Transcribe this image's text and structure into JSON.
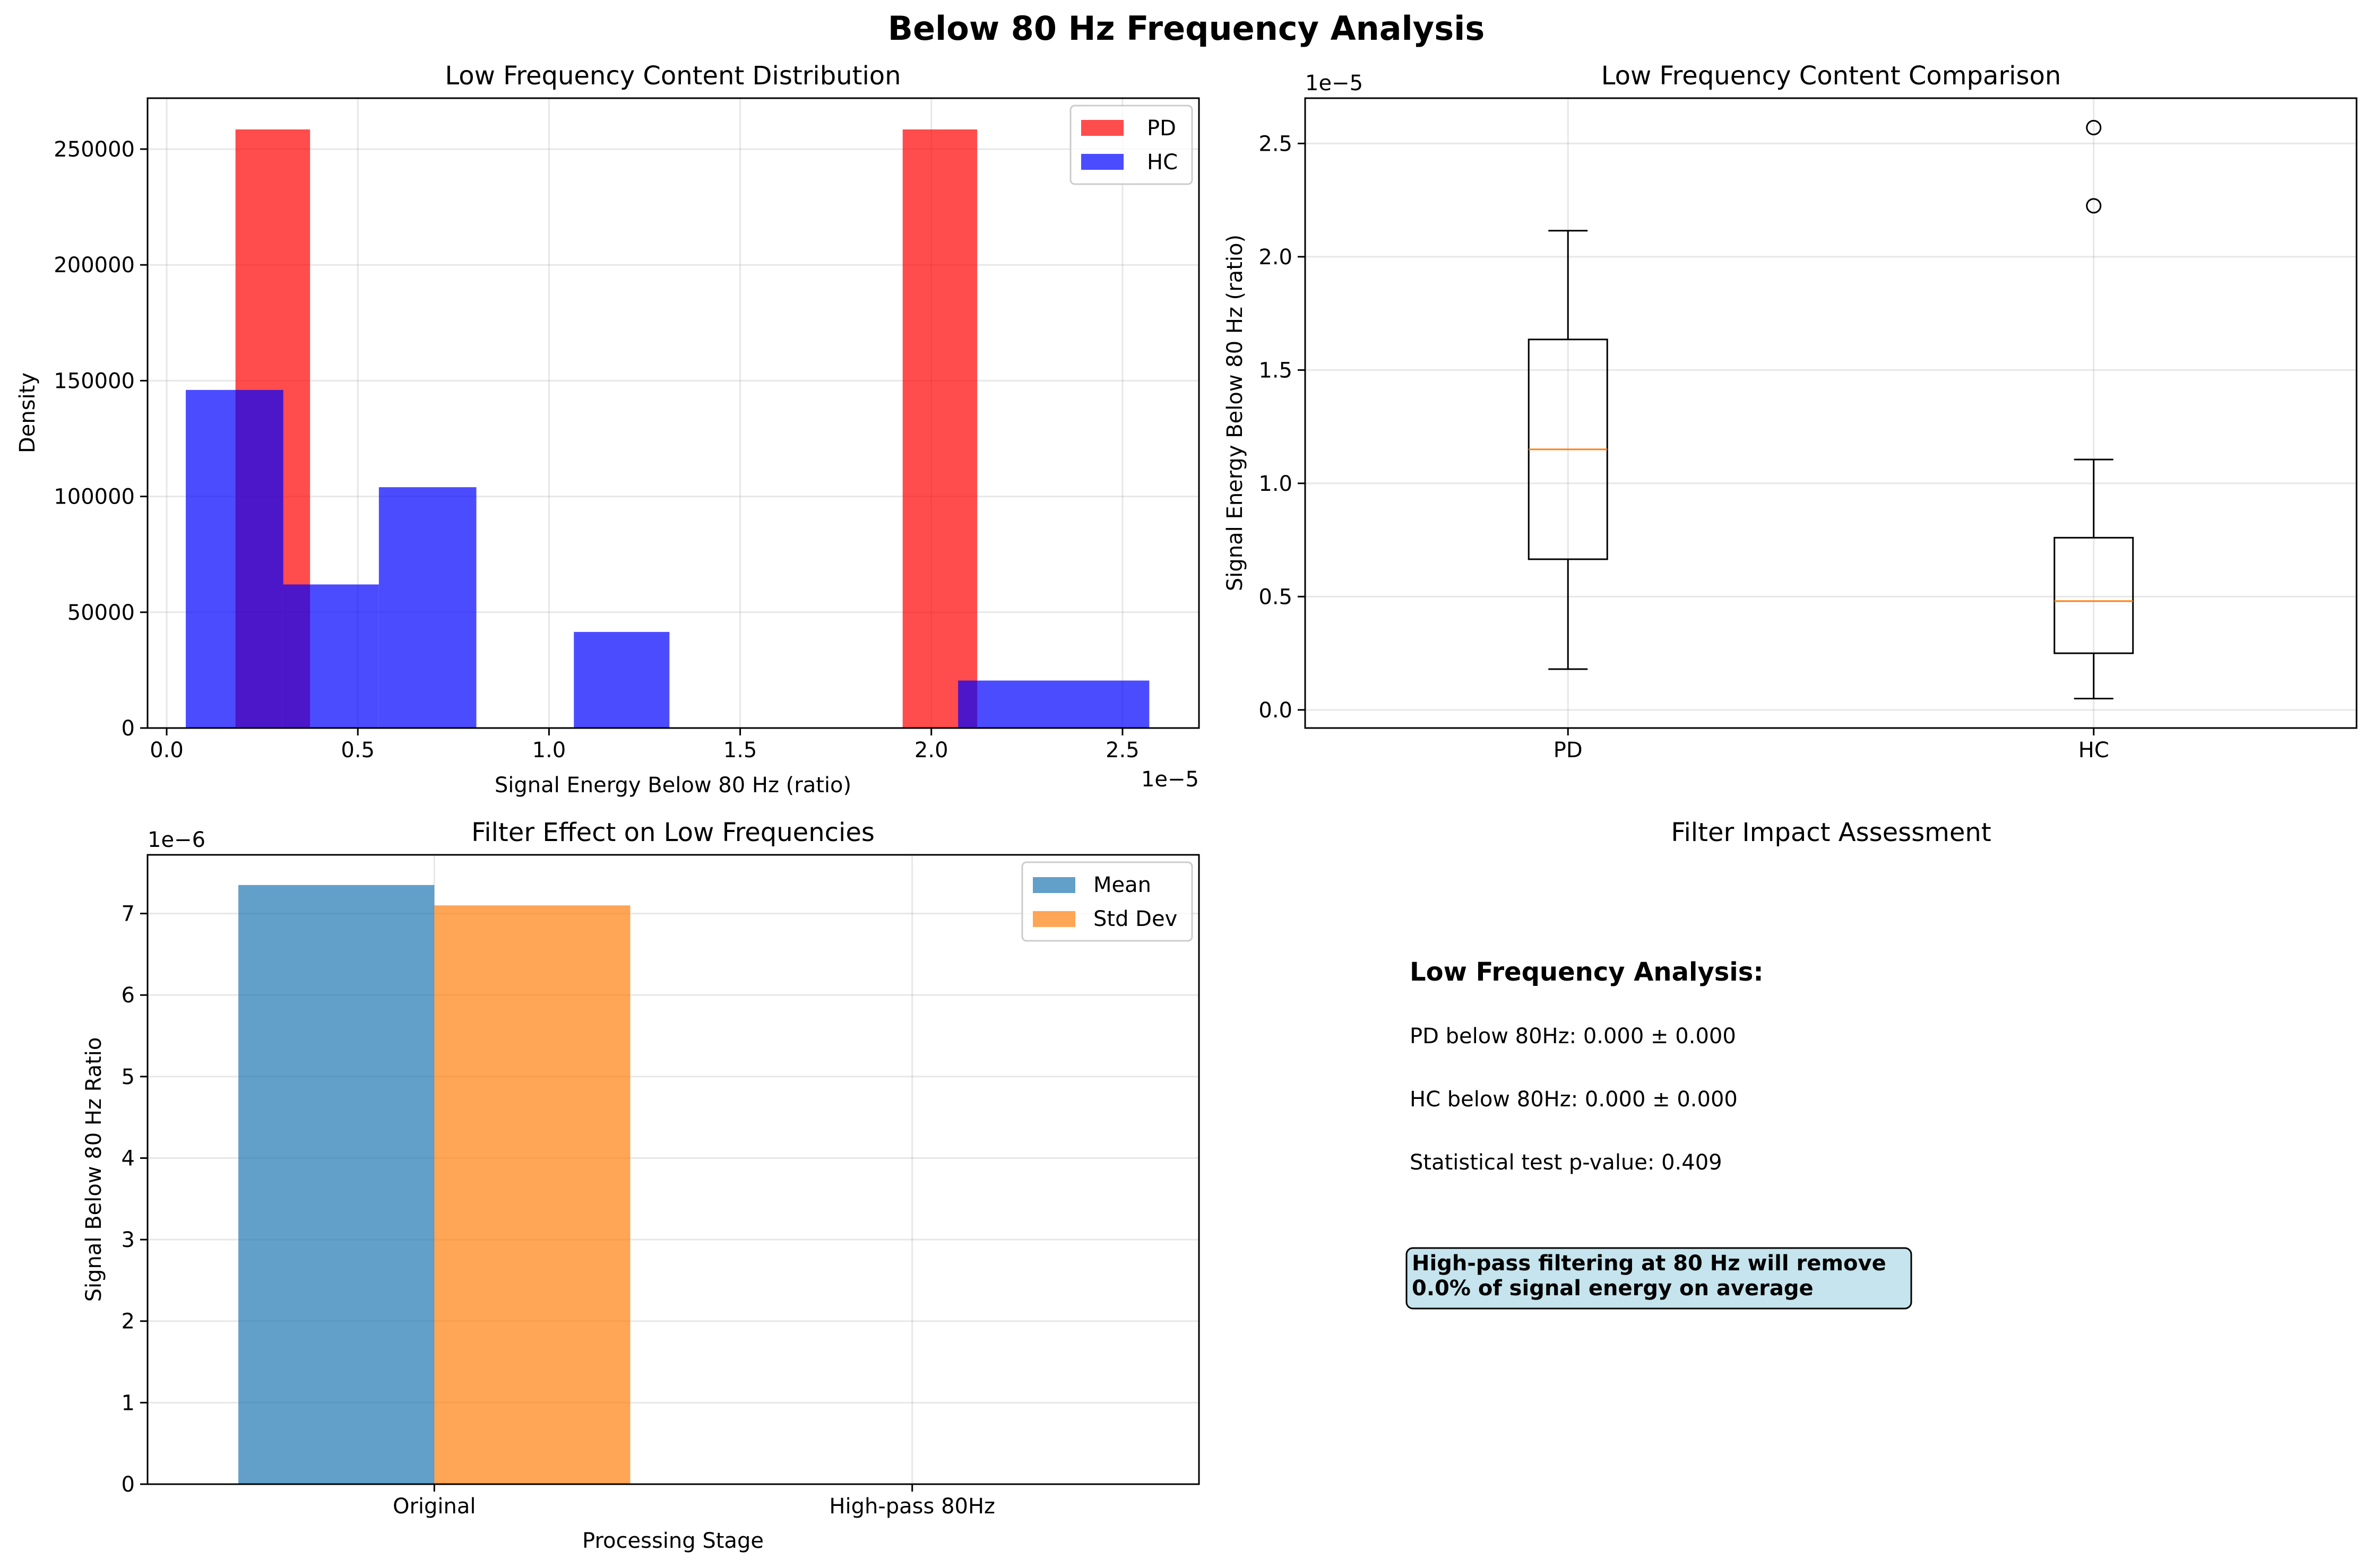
{
  "figure": {
    "suptitle": "Below 80 Hz Frequency Analysis"
  },
  "chart_data": [
    {
      "type": "histogram",
      "title": "Low Frequency Content Distribution",
      "xlabel": "Signal Energy Below 80 Hz (ratio)",
      "ylabel": "Density",
      "x_offset_label": "1e−5",
      "x_scale": 1e-05,
      "xlim": [
        -0.05,
        2.7
      ],
      "ylim": [
        0,
        272000
      ],
      "xticks": [
        0.0,
        0.5,
        1.0,
        1.5,
        2.0,
        2.5
      ],
      "xtick_labels": [
        "0.0",
        "0.5",
        "1.0",
        "1.5",
        "2.0",
        "2.5"
      ],
      "yticks": [
        0,
        50000,
        100000,
        150000,
        200000,
        250000
      ],
      "ytick_labels": [
        "0",
        "50000",
        "100000",
        "150000",
        "200000",
        "250000"
      ],
      "grid": true,
      "legend_position": "upper right",
      "series": [
        {
          "name": "PD",
          "color": "#ff0000",
          "alpha": 0.7,
          "bins": [
            {
              "x0": 0.18,
              "x1": 0.375,
              "density": 258500
            },
            {
              "x0": 1.925,
              "x1": 2.12,
              "density": 258500
            }
          ]
        },
        {
          "name": "HC",
          "color": "#0000ff",
          "alpha": 0.7,
          "bins": [
            {
              "x0": 0.05,
              "x1": 0.305,
              "density": 146000
            },
            {
              "x0": 0.305,
              "x1": 0.555,
              "density": 62000
            },
            {
              "x0": 0.555,
              "x1": 0.81,
              "density": 104000
            },
            {
              "x0": 1.065,
              "x1": 1.315,
              "density": 41500
            },
            {
              "x0": 2.07,
              "x1": 2.57,
              "density": 20500
            }
          ]
        }
      ]
    },
    {
      "type": "boxplot",
      "title": "Low Frequency Content Comparison",
      "ylabel": "Signal Energy Below 80 Hz (ratio)",
      "y_offset_label": "1e−5",
      "y_scale": 1e-05,
      "ylim": [
        -0.08,
        2.7
      ],
      "yticks": [
        0.0,
        0.5,
        1.0,
        1.5,
        2.0,
        2.5
      ],
      "ytick_labels": [
        "0.0",
        "0.5",
        "1.0",
        "1.5",
        "2.0",
        "2.5"
      ],
      "categories": [
        "PD",
        "HC"
      ],
      "grid": true,
      "median_color": "#ff7f0e",
      "boxes": [
        {
          "name": "PD",
          "whisker_low": 0.18,
          "q1": 0.665,
          "median": 1.15,
          "q3": 1.635,
          "whisker_high": 2.115,
          "outliers": []
        },
        {
          "name": "HC",
          "whisker_low": 0.05,
          "q1": 0.25,
          "median": 0.48,
          "q3": 0.76,
          "whisker_high": 1.105,
          "outliers": [
            2.225,
            2.57
          ]
        }
      ]
    },
    {
      "type": "bar",
      "title": "Filter Effect on Low Frequencies",
      "xlabel": "Processing Stage",
      "ylabel": "Signal Below 80 Hz Ratio",
      "y_offset_label": "1e−6",
      "y_scale": 1e-06,
      "categories": [
        "Original",
        "High-pass 80Hz"
      ],
      "ylim": [
        0,
        7.72
      ],
      "yticks": [
        0,
        1,
        2,
        3,
        4,
        5,
        6,
        7
      ],
      "ytick_labels": [
        "0",
        "1",
        "2",
        "3",
        "4",
        "5",
        "6",
        "7"
      ],
      "grid": true,
      "legend_position": "upper right",
      "series": [
        {
          "name": "Mean",
          "color": "#1f77b4",
          "alpha": 0.7,
          "values": [
            7.35,
            0.0
          ]
        },
        {
          "name": "Std Dev",
          "color": "#ff7f0e",
          "alpha": 0.7,
          "values": [
            7.1,
            0.0
          ]
        }
      ]
    }
  ],
  "assessment_panel": {
    "title": "Filter Impact Assessment",
    "heading": "Low Frequency Analysis:",
    "lines": [
      "PD below 80Hz: 0.000 ± 0.000",
      "HC below 80Hz: 0.000 ± 0.000",
      "Statistical test p-value: 0.409"
    ],
    "box_lines": [
      "High-pass filtering at 80 Hz will remove",
      "0.0% of signal energy on average"
    ],
    "box_color": "#add8e6"
  }
}
